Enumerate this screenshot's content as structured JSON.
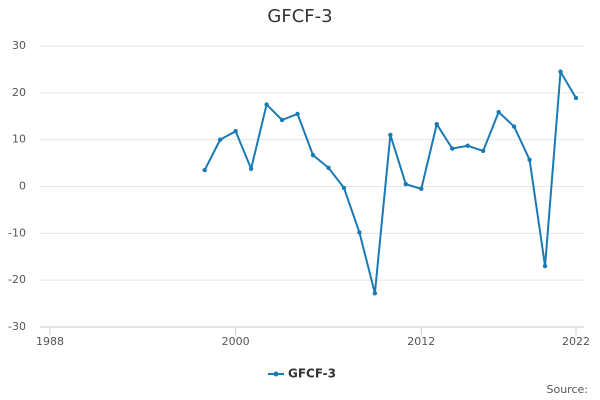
{
  "chart_data": {
    "type": "line",
    "title": "GFCF-3",
    "source": "Source:",
    "x": [
      1998,
      1999,
      2000,
      2001,
      2002,
      2003,
      2004,
      2005,
      2006,
      2007,
      2008,
      2009,
      2010,
      2011,
      2012,
      2013,
      2014,
      2015,
      2016,
      2017,
      2018,
      2019,
      2020,
      2021,
      2022
    ],
    "series": [
      {
        "name": "GFCF-3",
        "color": "#1a7ab5",
        "values": [
          3.5,
          10,
          11.8,
          3.8,
          17.5,
          14.2,
          15.5,
          6.7,
          4,
          -0.3,
          -9.8,
          -22.8,
          11,
          0.5,
          -0.5,
          13.3,
          8.1,
          8.7,
          7.6,
          15.9,
          12.8,
          5.7,
          -17,
          24.5,
          18.9
        ]
      }
    ],
    "xlim": [
      1988,
      2022
    ],
    "xticks": [
      1988,
      2000,
      2012,
      2022
    ],
    "ylim": [
      -30,
      30
    ],
    "yticks": [
      -30,
      -20,
      -10,
      0,
      10,
      20,
      30
    ],
    "grid": true,
    "legend": "bottom"
  }
}
